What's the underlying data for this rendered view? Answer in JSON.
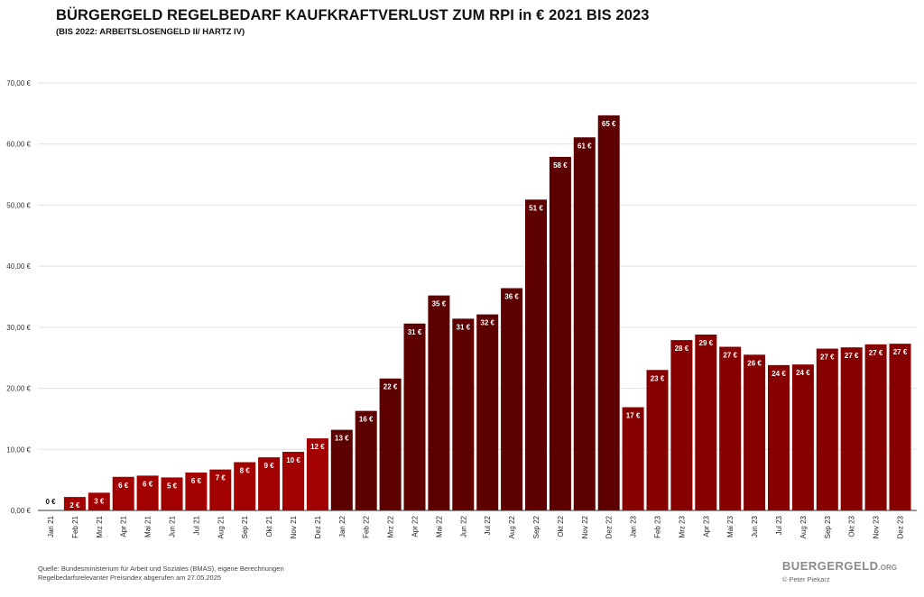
{
  "header": {
    "title": "BÜRGERGELD REGELBEDARF KAUFKRAFTVERLUST ZUM RPI in € 2021 BIS 2023",
    "subtitle": "(BIS 2022: ARBEITSLOSENGELD II/ HARTZ IV)"
  },
  "footer": {
    "source_line1": "Quelle: Bundesministerium für Arbeit und Soziales (BMAS), eigene Berechnungen",
    "source_line2": "Regelbedarfsrelevanter Preisindex abgerufen am 27.05.2025",
    "brand_name": "BUERGERGELD",
    "brand_tld": ".ORG",
    "copyright": "© Peter Piekarz"
  },
  "colors": {
    "y2021": "#a30000",
    "y2022": "#5c0000",
    "y2023": "#870000",
    "grid": "#e2e2e2",
    "axis": "#333333",
    "label_text": "#ffffff",
    "zero_label_text": "#111111"
  },
  "chart_data": {
    "type": "bar",
    "title": "BÜRGERGELD REGELBEDARF KAUFKRAFTVERLUST ZUM RPI in € 2021 BIS 2023",
    "subtitle": "(BIS 2022: ARBEITSLOSENGELD II/ HARTZ IV)",
    "xlabel": "",
    "ylabel": "",
    "ylim": [
      0,
      70
    ],
    "yticks": [
      0,
      10,
      20,
      30,
      40,
      50,
      60,
      70
    ],
    "ytick_labels": [
      "0,00 €",
      "10,00 €",
      "20,00 €",
      "30,00 €",
      "40,00 €",
      "50,00 €",
      "60,00 €",
      "70,00 €"
    ],
    "grid": true,
    "legend": "none",
    "categories": [
      "Jan 21",
      "Feb 21",
      "Mrz 21",
      "Apr 21",
      "Mai 21",
      "Jun 21",
      "Jul 21",
      "Aug 21",
      "Sep 21",
      "Okt 21",
      "Nov 21",
      "Dez 21",
      "Jan 22",
      "Feb 22",
      "Mrz 22",
      "Apr 22",
      "Mai 22",
      "Jun 22",
      "Jul 22",
      "Aug 22",
      "Sep 22",
      "Okt 22",
      "Nov 22",
      "Dez 22",
      "Jan 23",
      "Feb 23",
      "Mrz 23",
      "Apr 23",
      "Mai 23",
      "Jun 23",
      "Jul 23",
      "Aug 23",
      "Sep 23",
      "Okt 23",
      "Nov 23",
      "Dez 23"
    ],
    "values": [
      0,
      2.2,
      2.9,
      5.5,
      5.7,
      5.4,
      6.2,
      6.7,
      7.9,
      8.7,
      9.6,
      11.8,
      13.2,
      16.3,
      21.6,
      30.6,
      35.2,
      31.4,
      32.1,
      36.4,
      50.9,
      57.9,
      61.1,
      64.7,
      16.9,
      23.0,
      27.9,
      28.8,
      26.8,
      25.5,
      23.8,
      23.9,
      26.5,
      26.7,
      27.2,
      27.3
    ],
    "data_labels": [
      "0 €",
      "2 €",
      "3 €",
      "6 €",
      "6 €",
      "5 €",
      "6 €",
      "7 €",
      "8 €",
      "9 €",
      "10 €",
      "12 €",
      "13 €",
      "16 €",
      "22 €",
      "31 €",
      "35 €",
      "31 €",
      "32 €",
      "36 €",
      "51 €",
      "58 €",
      "61 €",
      "65 €",
      "17 €",
      "23 €",
      "28 €",
      "29 €",
      "27 €",
      "26 €",
      "24 €",
      "24 €",
      "27 €",
      "27 €",
      "27 €",
      "27 €"
    ]
  }
}
